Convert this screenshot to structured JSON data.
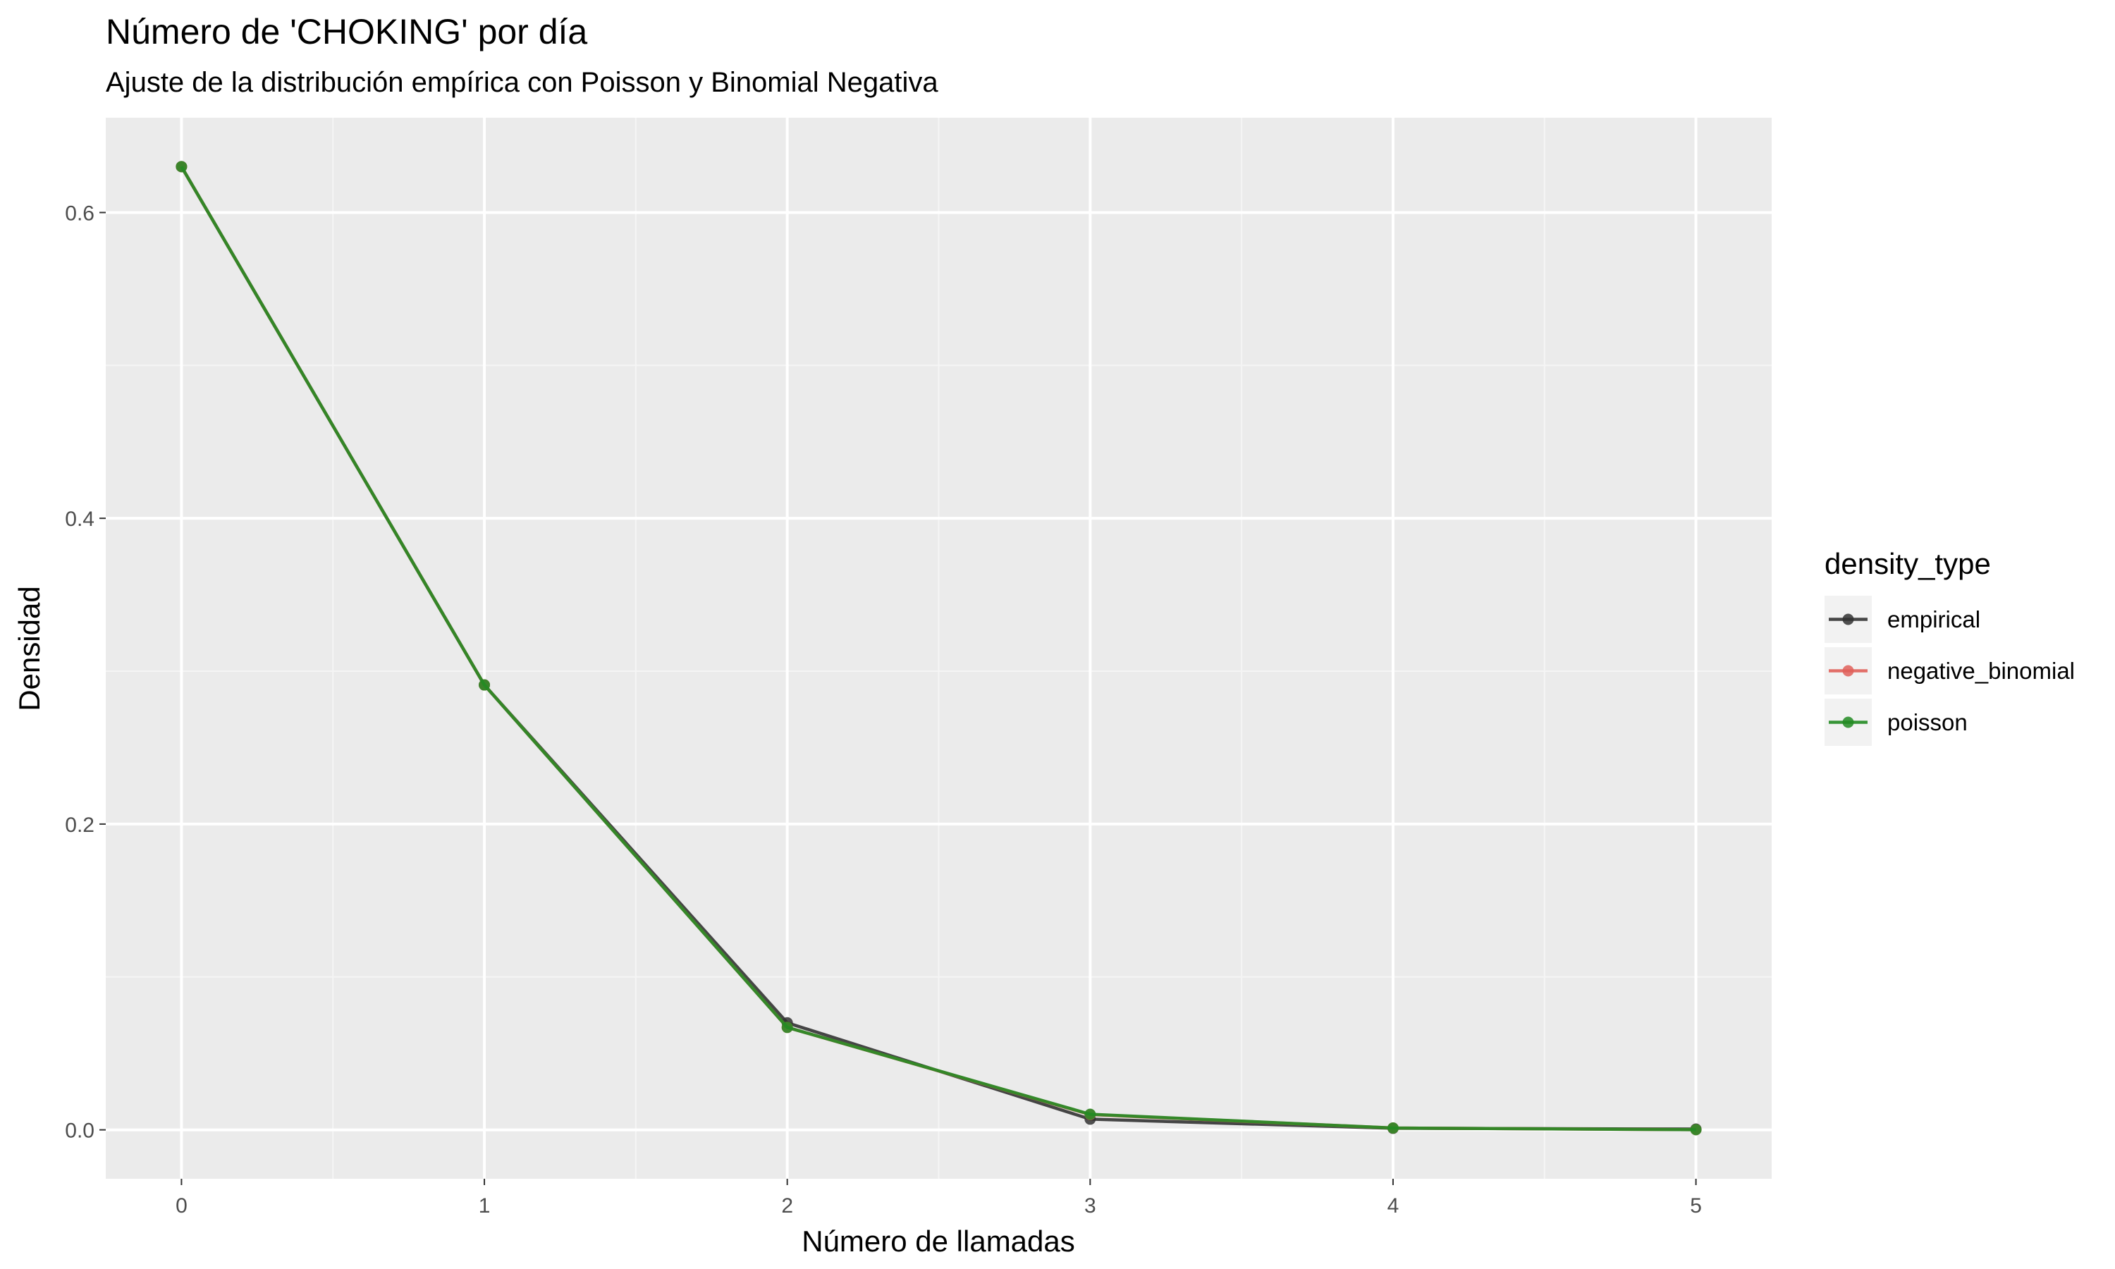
{
  "chart_data": {
    "type": "line",
    "title": "Número de 'CHOKING' por día",
    "subtitle": "Ajuste de la distribución empírica con Poisson y Binomial Negativa",
    "xlabel": "Número de llamadas",
    "ylabel": "Densidad",
    "x": [
      0,
      1,
      2,
      3,
      4,
      5
    ],
    "x_tick_labels": [
      "0",
      "1",
      "2",
      "3",
      "4",
      "5"
    ],
    "y_tick_labels": [
      "0.0",
      "0.2",
      "0.4",
      "0.6"
    ],
    "y_ticks": [
      0.0,
      0.2,
      0.4,
      0.6
    ],
    "xlim": [
      -0.25,
      5.25
    ],
    "ylim": [
      -0.032,
      0.662
    ],
    "grid": true,
    "legend": {
      "title": "density_type",
      "position": "right"
    },
    "series": [
      {
        "name": "empirical",
        "color": "#333333",
        "values": [
          0.63,
          0.291,
          0.07,
          0.007,
          0.001,
          0.0005
        ]
      },
      {
        "name": "negative_binomial",
        "color": "#e0605a",
        "values": [
          0.63,
          0.291,
          0.067,
          0.01,
          0.0012,
          0.0001
        ]
      },
      {
        "name": "poisson",
        "color": "#228b22",
        "values": [
          0.63,
          0.291,
          0.067,
          0.0102,
          0.0012,
          0.0001
        ]
      }
    ]
  }
}
